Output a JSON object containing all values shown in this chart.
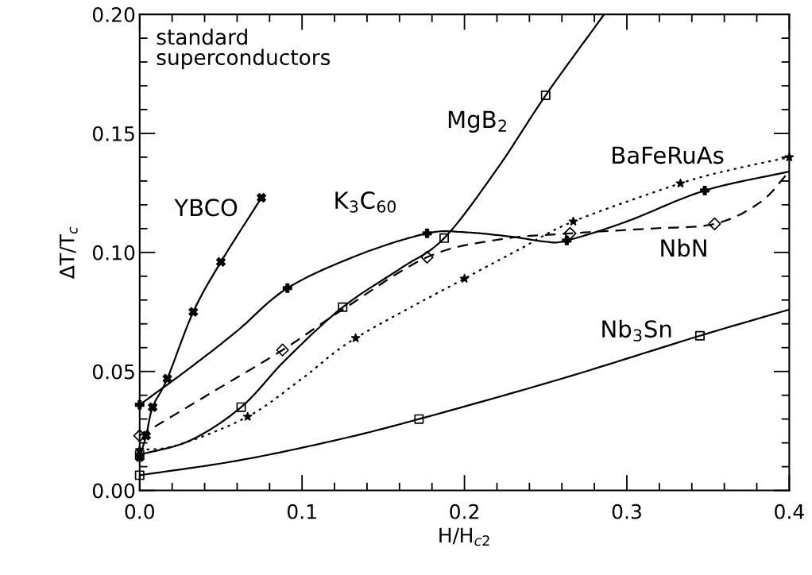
{
  "chart_data": {
    "type": "line",
    "xlabel": "H/H$_{c2}$",
    "ylabel": "ΔT/T$_{c}$",
    "xlim": [
      0.0,
      0.4
    ],
    "ylim": [
      0.0,
      0.2
    ],
    "xticks": [
      {
        "value": 0.0,
        "label": "0.0"
      },
      {
        "value": 0.02,
        "label": null
      },
      {
        "value": 0.04,
        "label": null
      },
      {
        "value": 0.06,
        "label": null
      },
      {
        "value": 0.08,
        "label": null
      },
      {
        "value": 0.1,
        "label": "0.1"
      },
      {
        "value": 0.12,
        "label": null
      },
      {
        "value": 0.14,
        "label": null
      },
      {
        "value": 0.16,
        "label": null
      },
      {
        "value": 0.18,
        "label": null
      },
      {
        "value": 0.2,
        "label": "0.2"
      },
      {
        "value": 0.22,
        "label": null
      },
      {
        "value": 0.24,
        "label": null
      },
      {
        "value": 0.26,
        "label": null
      },
      {
        "value": 0.28,
        "label": null
      },
      {
        "value": 0.3,
        "label": "0.3"
      },
      {
        "value": 0.32,
        "label": null
      },
      {
        "value": 0.34,
        "label": null
      },
      {
        "value": 0.36,
        "label": null
      },
      {
        "value": 0.38,
        "label": null
      },
      {
        "value": 0.4,
        "label": "0.4"
      }
    ],
    "yticks": [
      {
        "value": 0.0,
        "label": "0.00"
      },
      {
        "value": 0.01,
        "label": null
      },
      {
        "value": 0.02,
        "label": null
      },
      {
        "value": 0.03,
        "label": null
      },
      {
        "value": 0.04,
        "label": null
      },
      {
        "value": 0.05,
        "label": "0.05"
      },
      {
        "value": 0.06,
        "label": null
      },
      {
        "value": 0.07,
        "label": null
      },
      {
        "value": 0.08,
        "label": null
      },
      {
        "value": 0.09,
        "label": null
      },
      {
        "value": 0.1,
        "label": "0.10"
      },
      {
        "value": 0.11,
        "label": null
      },
      {
        "value": 0.12,
        "label": null
      },
      {
        "value": 0.13,
        "label": null
      },
      {
        "value": 0.14,
        "label": null
      },
      {
        "value": 0.15,
        "label": "0.15"
      },
      {
        "value": 0.16,
        "label": null
      },
      {
        "value": 0.17,
        "label": null
      },
      {
        "value": 0.18,
        "label": null
      },
      {
        "value": 0.19,
        "label": null
      },
      {
        "value": 0.2,
        "label": "0.20"
      }
    ],
    "grid": false,
    "legend": false,
    "series": [
      {
        "name": "YBCO",
        "color": "#000000",
        "line_style": "solid",
        "marker": "none",
        "x": [
          0,
          0.004,
          0.008,
          0.017,
          0.033,
          0.05,
          0.075
        ],
        "values": [
          0.014,
          0.023,
          0.035,
          0.047,
          0.075,
          0.096,
          0.123
        ]
      },
      {
        "type": "scatter",
        "color": "#000000",
        "marker": "cross",
        "x": [
          0,
          0.004,
          0.008,
          0.017,
          0.033,
          0.05,
          0.075
        ],
        "values": [
          0.014,
          0.023,
          0.035,
          0.047,
          0.075,
          0.096,
          0.123
        ]
      },
      {
        "name": "K$_{3}$C$_{60}$",
        "color": "#000000",
        "line_style": "solid",
        "marker": "none",
        "x": [
          0,
          0.03,
          0.06,
          0.091,
          0.135,
          0.177,
          0.2,
          0.23,
          0.25,
          0.263,
          0.3,
          0.348,
          0.4
        ],
        "values": [
          0.036,
          0.051,
          0.067,
          0.085,
          0.099,
          0.108,
          0.1085,
          0.1065,
          0.1045,
          0.105,
          0.113,
          0.126,
          0.134
        ]
      },
      {
        "type": "scatter",
        "color": "#000000",
        "marker": "plus",
        "x": [
          0,
          0.091,
          0.177,
          0.263,
          0.348
        ],
        "values": [
          0.036,
          0.085,
          0.108,
          0.105,
          0.126
        ]
      },
      {
        "name": "MgB$_{2}$",
        "color": "#000000",
        "line_style": "solid",
        "marker": "none",
        "x": [
          0,
          0.031,
          0.0625,
          0.09,
          0.125,
          0.16,
          0.1875,
          0.22,
          0.25,
          0.286
        ],
        "values": [
          0.015,
          0.021,
          0.035,
          0.055,
          0.077,
          0.093,
          0.106,
          0.135,
          0.166,
          0.2
        ]
      },
      {
        "type": "scatter",
        "color": "#000000",
        "marker": "square",
        "x": [
          0,
          0.0625,
          0.125,
          0.1875,
          0.25
        ],
        "values": [
          0.015,
          0.035,
          0.077,
          0.106,
          0.166
        ]
      },
      {
        "name": "NbN",
        "color": "#000000",
        "line_style": "dashed",
        "marker": "none",
        "x": [
          0,
          0.044,
          0.088,
          0.125,
          0.177,
          0.222,
          0.265,
          0.314,
          0.354,
          0.382,
          0.4
        ],
        "values": [
          0.023,
          0.041,
          0.059,
          0.076,
          0.098,
          0.1055,
          0.108,
          0.11,
          0.112,
          0.121,
          0.134
        ]
      },
      {
        "type": "scatter",
        "color": "#000000",
        "marker": "diamond",
        "x": [
          0,
          0.088,
          0.177,
          0.265,
          0.354
        ],
        "values": [
          0.023,
          0.059,
          0.098,
          0.108,
          0.112
        ]
      },
      {
        "name": "BaFeRuAs",
        "color": "#000000",
        "line_style": "dotted",
        "marker": "none",
        "x": [
          0,
          0.023,
          0.0665,
          0.1,
          0.133,
          0.2,
          0.233,
          0.267,
          0.333,
          0.366,
          0.4
        ],
        "values": [
          0.017,
          0.019,
          0.031,
          0.047,
          0.064,
          0.089,
          0.101,
          0.113,
          0.129,
          0.135,
          0.14
        ]
      },
      {
        "type": "scatter",
        "color": "#000000",
        "marker": "star",
        "x": [
          0,
          0.0665,
          0.133,
          0.2,
          0.267,
          0.333,
          0.4
        ],
        "values": [
          0.017,
          0.031,
          0.064,
          0.089,
          0.113,
          0.129,
          0.14
        ]
      },
      {
        "name": "Nb$_{3}$Sn",
        "color": "#000000",
        "line_style": "solid",
        "marker": "none",
        "x": [
          0,
          0.06,
          0.12,
          0.172,
          0.26,
          0.345,
          0.4
        ],
        "values": [
          0.0064,
          0.0125,
          0.021,
          0.03,
          0.047,
          0.065,
          0.076
        ]
      },
      {
        "type": "scatter",
        "color": "#000000",
        "marker": "square",
        "x": [
          0,
          0.172,
          0.345
        ],
        "values": [
          0.0064,
          0.03,
          0.065
        ]
      }
    ],
    "annotations": [
      "standard\nsuperconductors"
    ]
  }
}
